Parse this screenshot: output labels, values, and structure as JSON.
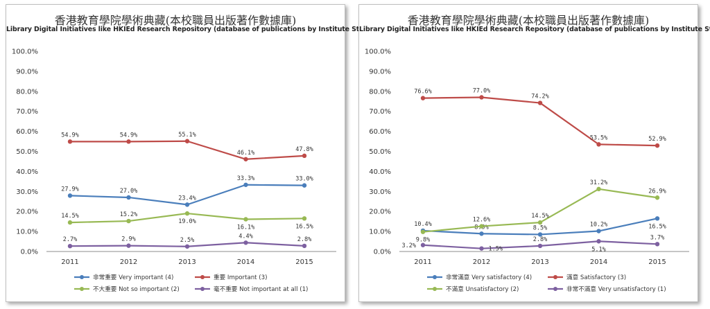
{
  "chart_data": [
    {
      "type": "line",
      "title": "香港教育學院學術典藏(本校職員出版著作數據庫)",
      "subtitle": "Library Digital Initiatives like HKIEd Research Repository (database of publications by Institute Staff)",
      "categories": [
        "2011",
        "2012",
        "2013",
        "2014",
        "2015"
      ],
      "y_ticks": [
        "0.0%",
        "10.0%",
        "20.0%",
        "30.0%",
        "40.0%",
        "50.0%",
        "60.0%",
        "70.0%",
        "80.0%",
        "90.0%",
        "100.0%"
      ],
      "ylim": [
        0,
        100
      ],
      "grid": false,
      "legend_position": "bottom",
      "series": [
        {
          "name": "非常重要 Very important (4)",
          "color": "#4a7ebb",
          "values": [
            27.9,
            27.0,
            23.4,
            33.3,
            33.0
          ],
          "labels": [
            "27.9%",
            "27.0%",
            "23.4%",
            "33.3%",
            "33.0%"
          ],
          "label_pos": [
            "above",
            "above",
            "above",
            "above",
            "above"
          ]
        },
        {
          "name": "重要 Important (3)",
          "color": "#be4b48",
          "values": [
            54.9,
            54.9,
            55.1,
            46.1,
            47.8
          ],
          "labels": [
            "54.9%",
            "54.9%",
            "55.1%",
            "46.1%",
            "47.8%"
          ],
          "label_pos": [
            "above",
            "above",
            "above",
            "above",
            "above"
          ]
        },
        {
          "name": "不大重要 Not so important (2)",
          "color": "#98b954",
          "values": [
            14.5,
            15.2,
            19.0,
            16.1,
            16.5
          ],
          "labels": [
            "14.5%",
            "15.2%",
            "19.0%",
            "16.1%",
            "16.5%"
          ],
          "label_pos": [
            "above",
            "above",
            "below",
            "below",
            "below"
          ]
        },
        {
          "name": "毫不重要 Not important at all (1)",
          "color": "#7d60a0",
          "values": [
            2.7,
            2.9,
            2.5,
            4.4,
            2.8
          ],
          "labels": [
            "2.7%",
            "2.9%",
            "2.5%",
            "4.4%",
            "2.8%"
          ],
          "label_pos": [
            "above",
            "above",
            "above",
            "above",
            "above"
          ]
        }
      ]
    },
    {
      "type": "line",
      "title": "香港教育學院學術典藏(本校職員出版著作數據庫)",
      "subtitle": "Library Digital Initiatives like HKIEd Research Repository (database of publications by Institute Staff)",
      "categories": [
        "2011",
        "2012",
        "2013",
        "2014",
        "2015"
      ],
      "y_ticks": [
        "0.0%",
        "10.0%",
        "20.0%",
        "30.0%",
        "40.0%",
        "50.0%",
        "60.0%",
        "70.0%",
        "80.0%",
        "90.0%",
        "100.0%"
      ],
      "ylim": [
        0,
        100
      ],
      "grid": false,
      "legend_position": "bottom",
      "series": [
        {
          "name": "非常滿意 Very satisfactory (4)",
          "color": "#4a7ebb",
          "values": [
            10.4,
            8.9,
            8.5,
            10.2,
            16.5
          ],
          "labels": [
            "10.4%",
            "8.9%",
            "8.5%",
            "10.2%",
            "16.5%"
          ],
          "label_pos": [
            "above",
            "above",
            "above",
            "above",
            "below"
          ]
        },
        {
          "name": "滿意 Satisfactory (3)",
          "color": "#be4b48",
          "values": [
            76.6,
            77.0,
            74.2,
            53.5,
            52.9
          ],
          "labels": [
            "76.6%",
            "77.0%",
            "74.2%",
            "53.5%",
            "52.9%"
          ],
          "label_pos": [
            "above",
            "above",
            "above",
            "above",
            "above"
          ]
        },
        {
          "name": "不滿意 Unsatisfactory (2)",
          "color": "#98b954",
          "values": [
            9.8,
            12.6,
            14.5,
            31.2,
            26.9
          ],
          "labels": [
            "9.8%",
            "12.6%",
            "14.5%",
            "31.2%",
            "26.9%"
          ],
          "label_pos": [
            "below",
            "above",
            "above",
            "above",
            "above"
          ]
        },
        {
          "name": "非常不滿意 Very unsatisfactory (1)",
          "color": "#7d60a0",
          "values": [
            3.2,
            1.5,
            2.8,
            5.1,
            3.7
          ],
          "labels": [
            "3.2%",
            "1.5%",
            "2.8%",
            "5.1%",
            "3.7%"
          ],
          "label_pos": [
            "left",
            "right",
            "above",
            "below",
            "above"
          ]
        }
      ]
    }
  ]
}
